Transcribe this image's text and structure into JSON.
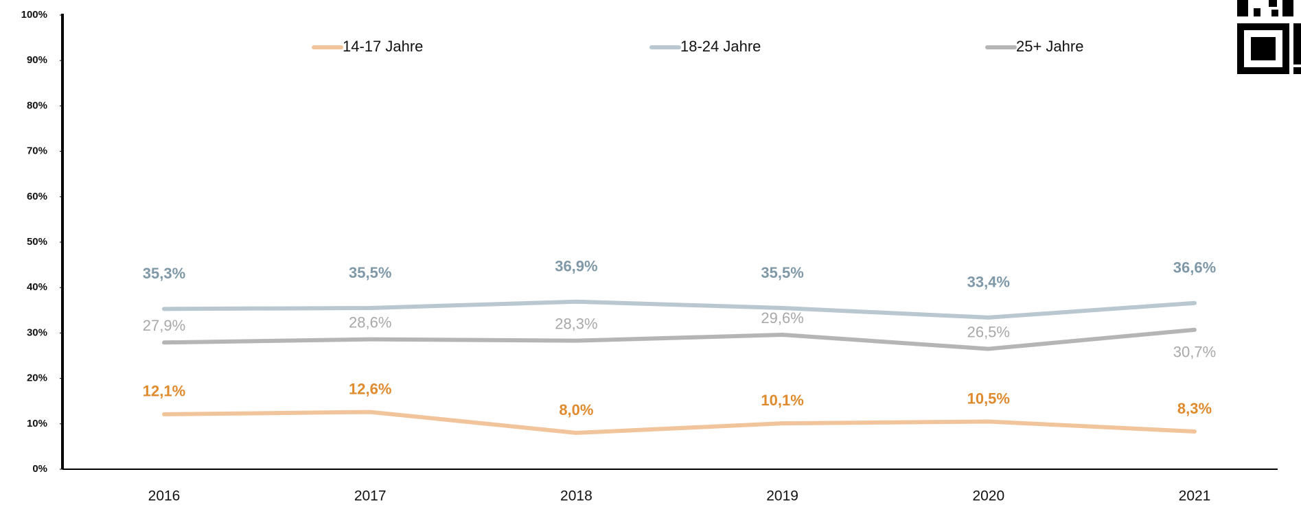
{
  "chart_data": {
    "type": "line",
    "categories": [
      "2016",
      "2017",
      "2018",
      "2019",
      "2020",
      "2021"
    ],
    "series": [
      {
        "name": "14-17 Jahre",
        "color": "#f2c49b",
        "label_color": "#e08a2e",
        "values": [
          12.1,
          12.6,
          8.0,
          10.1,
          10.5,
          8.3
        ],
        "value_labels": [
          "12,1%",
          "12,6%",
          "8,0%",
          "10,1%",
          "10,5%",
          "8,3%"
        ]
      },
      {
        "name": "18-24 Jahre",
        "color": "#b8c7d0",
        "label_color": "#7f98a8",
        "values": [
          35.3,
          35.5,
          36.9,
          35.5,
          33.4,
          36.6
        ],
        "value_labels": [
          "35,3%",
          "35,5%",
          "36,9%",
          "35,5%",
          "33,4%",
          "36,6%"
        ]
      },
      {
        "name": "25+ Jahre",
        "color": "#b5b5b5",
        "label_color": "#a8a8a8",
        "values": [
          27.9,
          28.6,
          28.3,
          29.6,
          26.5,
          30.7
        ],
        "value_labels": [
          "27,9%",
          "28,6%",
          "28,3%",
          "29,6%",
          "26,5%",
          "30,7%"
        ]
      }
    ],
    "ylim": [
      0,
      100
    ],
    "yticks": [
      {
        "value": 0,
        "label": "0%"
      },
      {
        "value": 10,
        "label": "10%"
      },
      {
        "value": 20,
        "label": "20%"
      },
      {
        "value": 30,
        "label": "30%"
      },
      {
        "value": 40,
        "label": "40%"
      },
      {
        "value": 50,
        "label": "50%"
      },
      {
        "value": 60,
        "label": "60%"
      },
      {
        "value": 70,
        "label": "70%"
      },
      {
        "value": 80,
        "label": "80%"
      },
      {
        "value": 90,
        "label": "90%"
      },
      {
        "value": 100,
        "label": "100%"
      }
    ],
    "legend": "top"
  }
}
